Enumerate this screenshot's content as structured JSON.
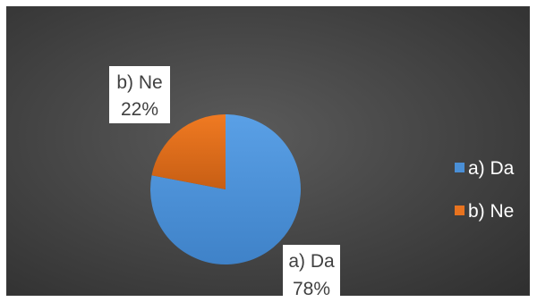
{
  "chart_data": {
    "type": "pie",
    "categories": [
      "a) Da",
      "b) Ne"
    ],
    "values": [
      78,
      22
    ],
    "colors": [
      "#4a8fd6",
      "#e8731f"
    ],
    "data_labels": [
      {
        "name": "a) Da",
        "value": "78%"
      },
      {
        "name": "b) Ne",
        "value": "22%"
      }
    ],
    "legend": {
      "placement": "right",
      "items": [
        "a) Da",
        "b) Ne"
      ]
    },
    "title": ""
  }
}
